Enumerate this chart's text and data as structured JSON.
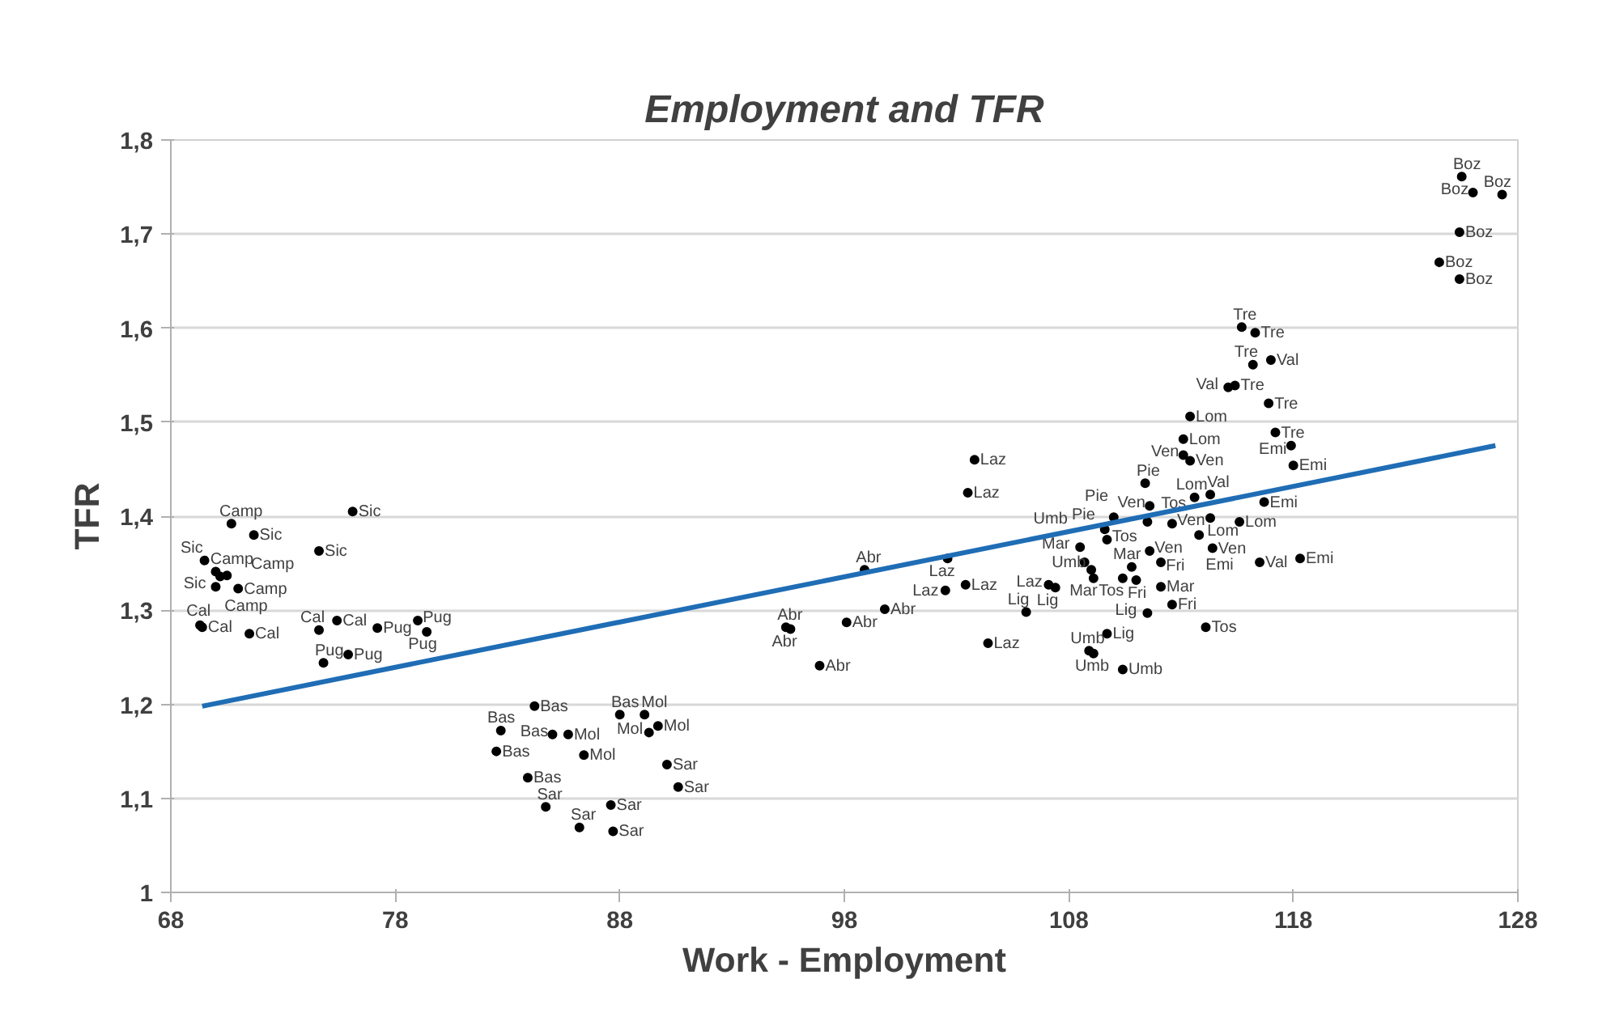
{
  "chart_data": {
    "type": "scatter",
    "title": "Employment and TFR",
    "xlabel": "Work - Employment",
    "ylabel": "TFR",
    "xlim": [
      68,
      128
    ],
    "xticks": [
      68,
      78,
      88,
      98,
      108,
      118,
      128
    ],
    "ylim": [
      1,
      1.8
    ],
    "yticks": [
      {
        "value": 1,
        "label": "1"
      },
      {
        "value": 1.1,
        "label": "1,1"
      },
      {
        "value": 1.2,
        "label": "1,2"
      },
      {
        "value": 1.3,
        "label": "1,3"
      },
      {
        "value": 1.4,
        "label": "1,4"
      },
      {
        "value": 1.5,
        "label": "1,5"
      },
      {
        "value": 1.6,
        "label": "1,6"
      },
      {
        "value": 1.7,
        "label": "1,7"
      },
      {
        "value": 1.8,
        "label": "1,8"
      }
    ],
    "grid": "y",
    "series": [
      {
        "type": "scatter",
        "color": "#000000",
        "marker": "circle",
        "x": [
          76.1,
          70.7,
          71.7,
          74.6,
          69.5,
          70.0,
          70.2,
          70.5,
          70.0,
          71.0,
          69.3,
          69.4,
          71.5,
          75.4,
          74.6,
          77.2,
          79.0,
          79.4,
          74.8,
          75.9,
          84.2,
          82.7,
          82.5,
          83.9,
          85.0,
          86.4,
          88.0,
          89.1,
          89.7,
          89.3,
          85.7,
          90.1,
          90.6,
          84.7,
          87.6,
          86.2,
          87.7,
          103.8,
          103.5,
          102.6,
          98.9,
          103.4,
          102.5,
          99.8,
          95.4,
          95.6,
          98.1,
          96.9,
          104.4,
          106.1,
          115.7,
          116.3,
          117.0,
          116.2,
          115.1,
          115.4,
          116.9,
          113.4,
          113.1,
          117.2,
          117.9,
          113.1,
          113.4,
          118.0,
          111.4,
          113.6,
          114.3,
          111.6,
          115.6,
          116.7,
          116.5,
          118.3,
          114.1,
          112.6,
          111.5,
          109.7,
          108.9,
          109.1,
          110.4,
          107.4,
          107.1,
          108.5,
          108.7,
          109.0,
          109.1,
          109.6,
          109.7,
          110.0,
          110.8,
          110.4,
          111.0,
          111.6,
          112.1,
          112.1,
          111.5,
          112.6,
          114.3,
          113.8,
          114.4,
          125.5,
          126.0,
          127.3,
          125.4,
          124.5,
          125.4
        ],
        "values": [
          1.405,
          1.392,
          1.38,
          1.363,
          1.353,
          1.341,
          1.336,
          1.337,
          1.325,
          1.323,
          1.284,
          1.282,
          1.275,
          1.289,
          1.279,
          1.281,
          1.289,
          1.277,
          1.244,
          1.253,
          1.198,
          1.172,
          1.15,
          1.122,
          1.168,
          1.146,
          1.189,
          1.189,
          1.177,
          1.17,
          1.168,
          1.136,
          1.112,
          1.091,
          1.093,
          1.069,
          1.065,
          1.46,
          1.425,
          1.355,
          1.343,
          1.327,
          1.321,
          1.301,
          1.282,
          1.28,
          1.287,
          1.241,
          1.265,
          1.298,
          1.601,
          1.595,
          1.566,
          1.561,
          1.537,
          1.539,
          1.52,
          1.506,
          1.482,
          1.489,
          1.475,
          1.465,
          1.459,
          1.454,
          1.435,
          1.42,
          1.423,
          1.411,
          1.394,
          1.415,
          1.351,
          1.355,
          1.282,
          1.306,
          1.297,
          1.275,
          1.257,
          1.254,
          1.237,
          1.324,
          1.327,
          1.367,
          1.351,
          1.343,
          1.334,
          1.386,
          1.375,
          1.399,
          1.346,
          1.334,
          1.332,
          1.363,
          1.351,
          1.325,
          1.394,
          1.392,
          1.398,
          1.38,
          1.366,
          1.761,
          1.744,
          1.742,
          1.702,
          1.67,
          1.652
        ],
        "value_labels": [
          "Sic",
          "Camp",
          "Sic",
          "Sic",
          "Sic",
          "Camp",
          "Camp",
          "Camp",
          "Sic",
          "Camp",
          "Cal",
          "Cal",
          "Cal",
          "Cal",
          "Cal",
          "Pug",
          "Pug",
          "Pug",
          "Pug",
          "Pug",
          "Bas",
          "Bas",
          "Bas",
          "Bas",
          "Bas",
          "Mol",
          "Bas",
          "Mol",
          "Mol",
          "Mol",
          "Mol",
          "Sar",
          "Sar",
          "Sar",
          "Sar",
          "Sar",
          "Sar",
          "Laz",
          "Laz",
          "Laz",
          "Abr",
          "Laz",
          "Laz",
          "Abr",
          "Abr",
          "Abr",
          "Abr",
          "Abr",
          "Laz",
          "Lig",
          "Tre",
          "Tre",
          "Val",
          "Tre",
          "Val",
          "Tre",
          "Tre",
          "Lom",
          "Lom",
          "Tre",
          "Emi",
          "Ven",
          "Ven",
          "Emi",
          "Pie",
          "Lom",
          "Val",
          "Ven",
          "Lom",
          "Emi",
          "Val",
          "Emi",
          "Tos",
          "Fri",
          "Lig",
          "Lig",
          "Umb",
          "Umb",
          "Umb",
          "Lig",
          "Laz",
          "Umb",
          "Umb",
          "Mar",
          "Mar",
          "Pie",
          "Tos",
          "Pie",
          "Mar",
          "Tos",
          "Fri",
          "Ven",
          "Fri",
          "Mar",
          "Tos",
          "Ven",
          "Lom",
          "Emi",
          "Ven",
          "Boz",
          "Boz",
          "Boz",
          "Boz",
          "Boz",
          "Boz"
        ]
      },
      {
        "type": "line",
        "color": "#1f6db5",
        "line_style": "solid",
        "x": [
          69.4,
          127.0
        ],
        "values": [
          1.198,
          1.475
        ]
      }
    ]
  }
}
